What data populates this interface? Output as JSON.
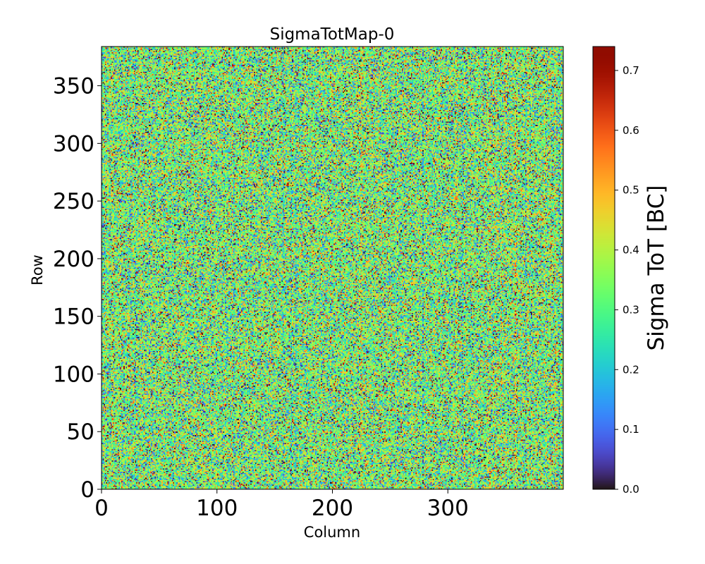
{
  "chart_data": {
    "type": "heatmap",
    "title": "SigmaTotMap-0",
    "xlabel": "Column",
    "ylabel": "Row",
    "colorbar_label": "Sigma ToT [BC]",
    "colormap": "turbo",
    "columns": 400,
    "rows": 384,
    "xlim": [
      0,
      400
    ],
    "ylim": [
      0,
      384
    ],
    "x_ticks": [
      {
        "value": 0,
        "label": "0"
      },
      {
        "value": 100,
        "label": "100"
      },
      {
        "value": 200,
        "label": "200"
      },
      {
        "value": 300,
        "label": "300"
      }
    ],
    "y_ticks": [
      {
        "value": 0,
        "label": "0"
      },
      {
        "value": 50,
        "label": "50"
      },
      {
        "value": 100,
        "label": "100"
      },
      {
        "value": 150,
        "label": "150"
      },
      {
        "value": 200,
        "label": "200"
      },
      {
        "value": 250,
        "label": "250"
      },
      {
        "value": 300,
        "label": "300"
      },
      {
        "value": 350,
        "label": "350"
      }
    ],
    "color_range": [
      0.0,
      0.74
    ],
    "colorbar_ticks": [
      {
        "value": 0.0,
        "label": "0.0"
      },
      {
        "value": 0.1,
        "label": "0.1"
      },
      {
        "value": 0.2,
        "label": "0.2"
      },
      {
        "value": 0.3,
        "label": "0.3"
      },
      {
        "value": 0.4,
        "label": "0.4"
      },
      {
        "value": 0.5,
        "label": "0.5"
      },
      {
        "value": 0.6,
        "label": "0.6"
      },
      {
        "value": 0.7,
        "label": "0.7"
      }
    ],
    "value_distribution": {
      "typical": 0.33,
      "spread": 0.13,
      "min": 0.0,
      "max": 0.74
    }
  }
}
